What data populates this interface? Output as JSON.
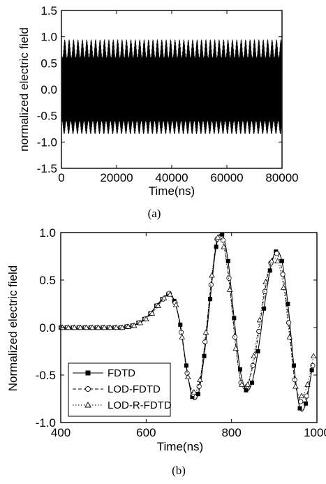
{
  "figure": {
    "caption_a": "(a)",
    "caption_b": "(b)"
  },
  "chart_data": [
    {
      "type": "line",
      "xlabel": "Time(ns)",
      "ylabel": "normalized electric field",
      "xlim": [
        0,
        80000
      ],
      "ylim": [
        -1.5,
        1.5
      ],
      "xticks": [
        0,
        20000,
        40000,
        60000,
        80000
      ],
      "yticks": [
        -1.5,
        -1.0,
        -0.5,
        0.0,
        0.5,
        1.0,
        1.5
      ],
      "xtick_labels": [
        "0",
        "20000",
        "40000",
        "60000",
        "80000"
      ],
      "ytick_labels": [
        "-1.5",
        "-1.0",
        "-0.5",
        "0.0",
        "0.5",
        "1.0",
        "1.5"
      ],
      "envelope": {
        "upper_max": 0.95,
        "upper_min": 0.6,
        "lower_min": -0.85,
        "lower_max": -0.6,
        "beat_period": 1600
      },
      "color": "#000000",
      "grid": false
    },
    {
      "type": "line",
      "xlabel": "Time(ns)",
      "ylabel": "Normalized electric field",
      "xlim": [
        400,
        1000
      ],
      "ylim": [
        -1.0,
        1.0
      ],
      "xticks": [
        400,
        600,
        800,
        1000
      ],
      "yticks": [
        -1.0,
        -0.5,
        0.0,
        0.5,
        1.0
      ],
      "xtick_labels": [
        "400",
        "600",
        "800",
        "1000"
      ],
      "ytick_labels": [
        "-1.0",
        "-0.5",
        "0.0",
        "0.5",
        "1.0"
      ],
      "legend_position": "lower-left",
      "grid": false,
      "series": [
        {
          "name": "FDTD",
          "marker": "square",
          "dash": "",
          "x0": 400,
          "dx": 14,
          "values": [
            0.0,
            0.0,
            0.0,
            0.0,
            0.0,
            0.0,
            0.0,
            0.0,
            0.0,
            0.0,
            0.0,
            0.01,
            0.02,
            0.05,
            0.09,
            0.15,
            0.23,
            0.3,
            0.35,
            0.28,
            0.03,
            -0.4,
            -0.73,
            -0.7,
            -0.3,
            0.3,
            0.85,
            0.98,
            0.7,
            0.1,
            -0.44,
            -0.66,
            -0.58,
            -0.25,
            0.2,
            0.6,
            0.8,
            0.7,
            0.25,
            -0.4,
            -0.85,
            -0.8,
            -0.45
          ]
        },
        {
          "name": "LOD-FDTD",
          "marker": "circle",
          "dash": "5,3",
          "x0": 402,
          "dx": 14,
          "values": [
            0.0,
            0.0,
            0.0,
            0.0,
            0.0,
            0.0,
            0.0,
            0.0,
            0.0,
            0.0,
            0.0,
            0.01,
            0.02,
            0.05,
            0.09,
            0.15,
            0.23,
            0.3,
            0.36,
            0.26,
            -0.05,
            -0.48,
            -0.7,
            -0.62,
            -0.15,
            0.45,
            0.93,
            0.92,
            0.52,
            -0.1,
            -0.58,
            -0.62,
            -0.4,
            -0.04,
            0.38,
            0.68,
            0.78,
            0.56,
            0.05,
            -0.55,
            -0.78,
            -0.72,
            -0.4
          ]
        },
        {
          "name": "LOD-R-FDTD",
          "marker": "triangle",
          "dash": "1.5,2.5",
          "x0": 404,
          "dx": 14,
          "values": [
            0.0,
            0.0,
            0.0,
            0.0,
            0.0,
            0.0,
            0.0,
            0.0,
            0.0,
            0.0,
            0.0,
            0.01,
            0.02,
            0.05,
            0.09,
            0.15,
            0.23,
            0.31,
            0.35,
            0.24,
            -0.1,
            -0.52,
            -0.68,
            -0.55,
            -0.05,
            0.55,
            0.95,
            0.85,
            0.4,
            -0.22,
            -0.6,
            -0.6,
            -0.3,
            0.08,
            0.48,
            0.7,
            0.7,
            0.42,
            -0.1,
            -0.62,
            -0.72,
            -0.6,
            -0.3
          ]
        }
      ]
    }
  ]
}
